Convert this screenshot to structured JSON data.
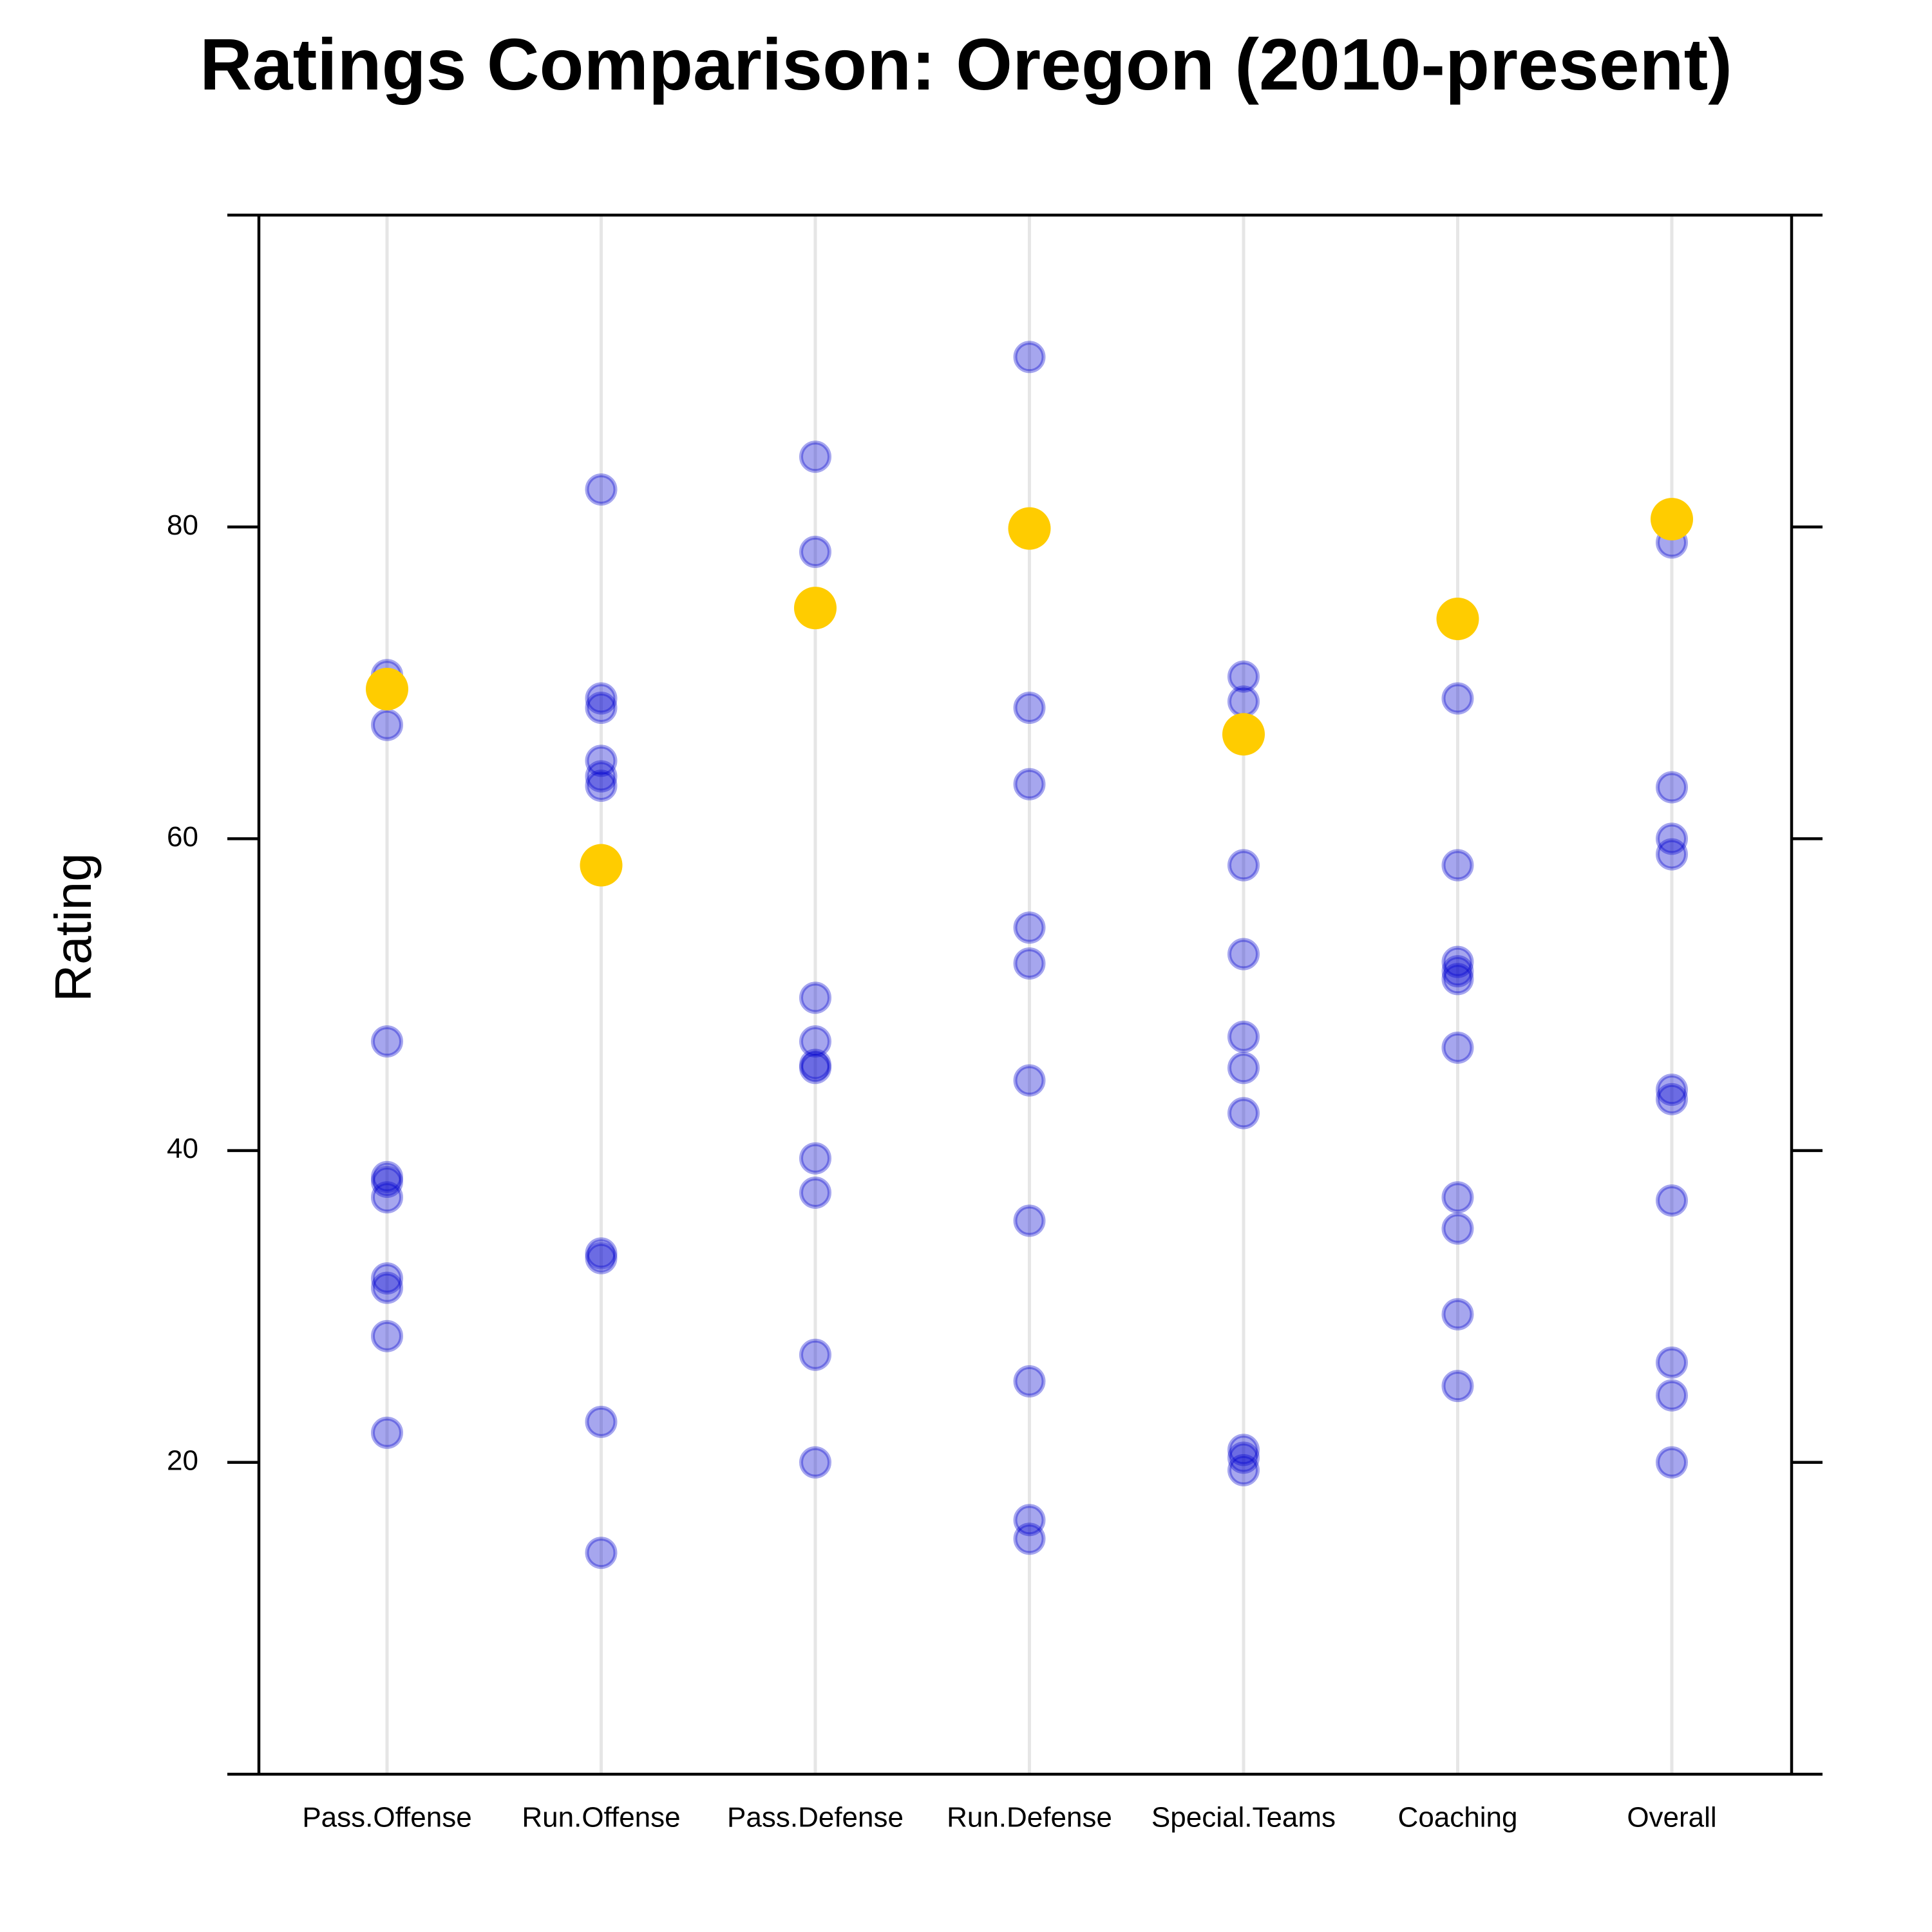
{
  "title": "Ratings Comparison: Oregon (2010-present)",
  "chart_data": {
    "type": "scatter",
    "title": "Ratings Comparison: Oregon (2010-present)",
    "xlabel": "",
    "ylabel": "Rating",
    "categories": [
      "Pass.Offense",
      "Run.Offense",
      "Pass.Defense",
      "Run.Defense",
      "Special.Teams",
      "Coaching",
      "Overall"
    ],
    "yticks": [
      20,
      40,
      60,
      80
    ],
    "ylim": [
      0,
      100
    ],
    "grid": "vertical category lines",
    "colors": {
      "others_fill": "#0000CD",
      "others_opacity": 0.35,
      "highlight": "#FFCC00",
      "gridline": "#E6E6E6",
      "axis": "#000000"
    },
    "series": [
      {
        "role": "others",
        "values": [
          [
            70.5,
            67.3,
            47.0,
            38.3,
            38.0,
            37.0,
            31.8,
            31.2,
            28.1,
            21.9
          ],
          [
            82.4,
            69.0,
            68.4,
            65.0,
            64.0,
            63.4,
            33.4,
            33.1,
            22.6,
            14.2
          ],
          [
            84.5,
            78.4,
            49.8,
            47.0,
            45.5,
            45.3,
            39.5,
            37.3,
            26.9,
            20.0
          ],
          [
            90.9,
            68.4,
            63.5,
            54.3,
            52.0,
            44.5,
            35.5,
            25.2,
            16.3,
            15.1
          ],
          [
            70.4,
            68.8,
            58.3,
            52.6,
            47.3,
            45.3,
            42.4,
            20.8,
            20.3,
            19.5
          ],
          [
            69.0,
            58.3,
            52.1,
            51.5,
            51.0,
            46.6,
            37.0,
            35.0,
            29.5,
            24.9
          ],
          [
            79.0,
            63.3,
            60.0,
            59.0,
            43.9,
            43.3,
            36.8,
            26.4,
            24.3,
            20.0
          ]
        ]
      },
      {
        "role": "highlight",
        "values": [
          69.6,
          58.3,
          74.8,
          79.9,
          66.7,
          74.1,
          80.5
        ]
      }
    ]
  }
}
